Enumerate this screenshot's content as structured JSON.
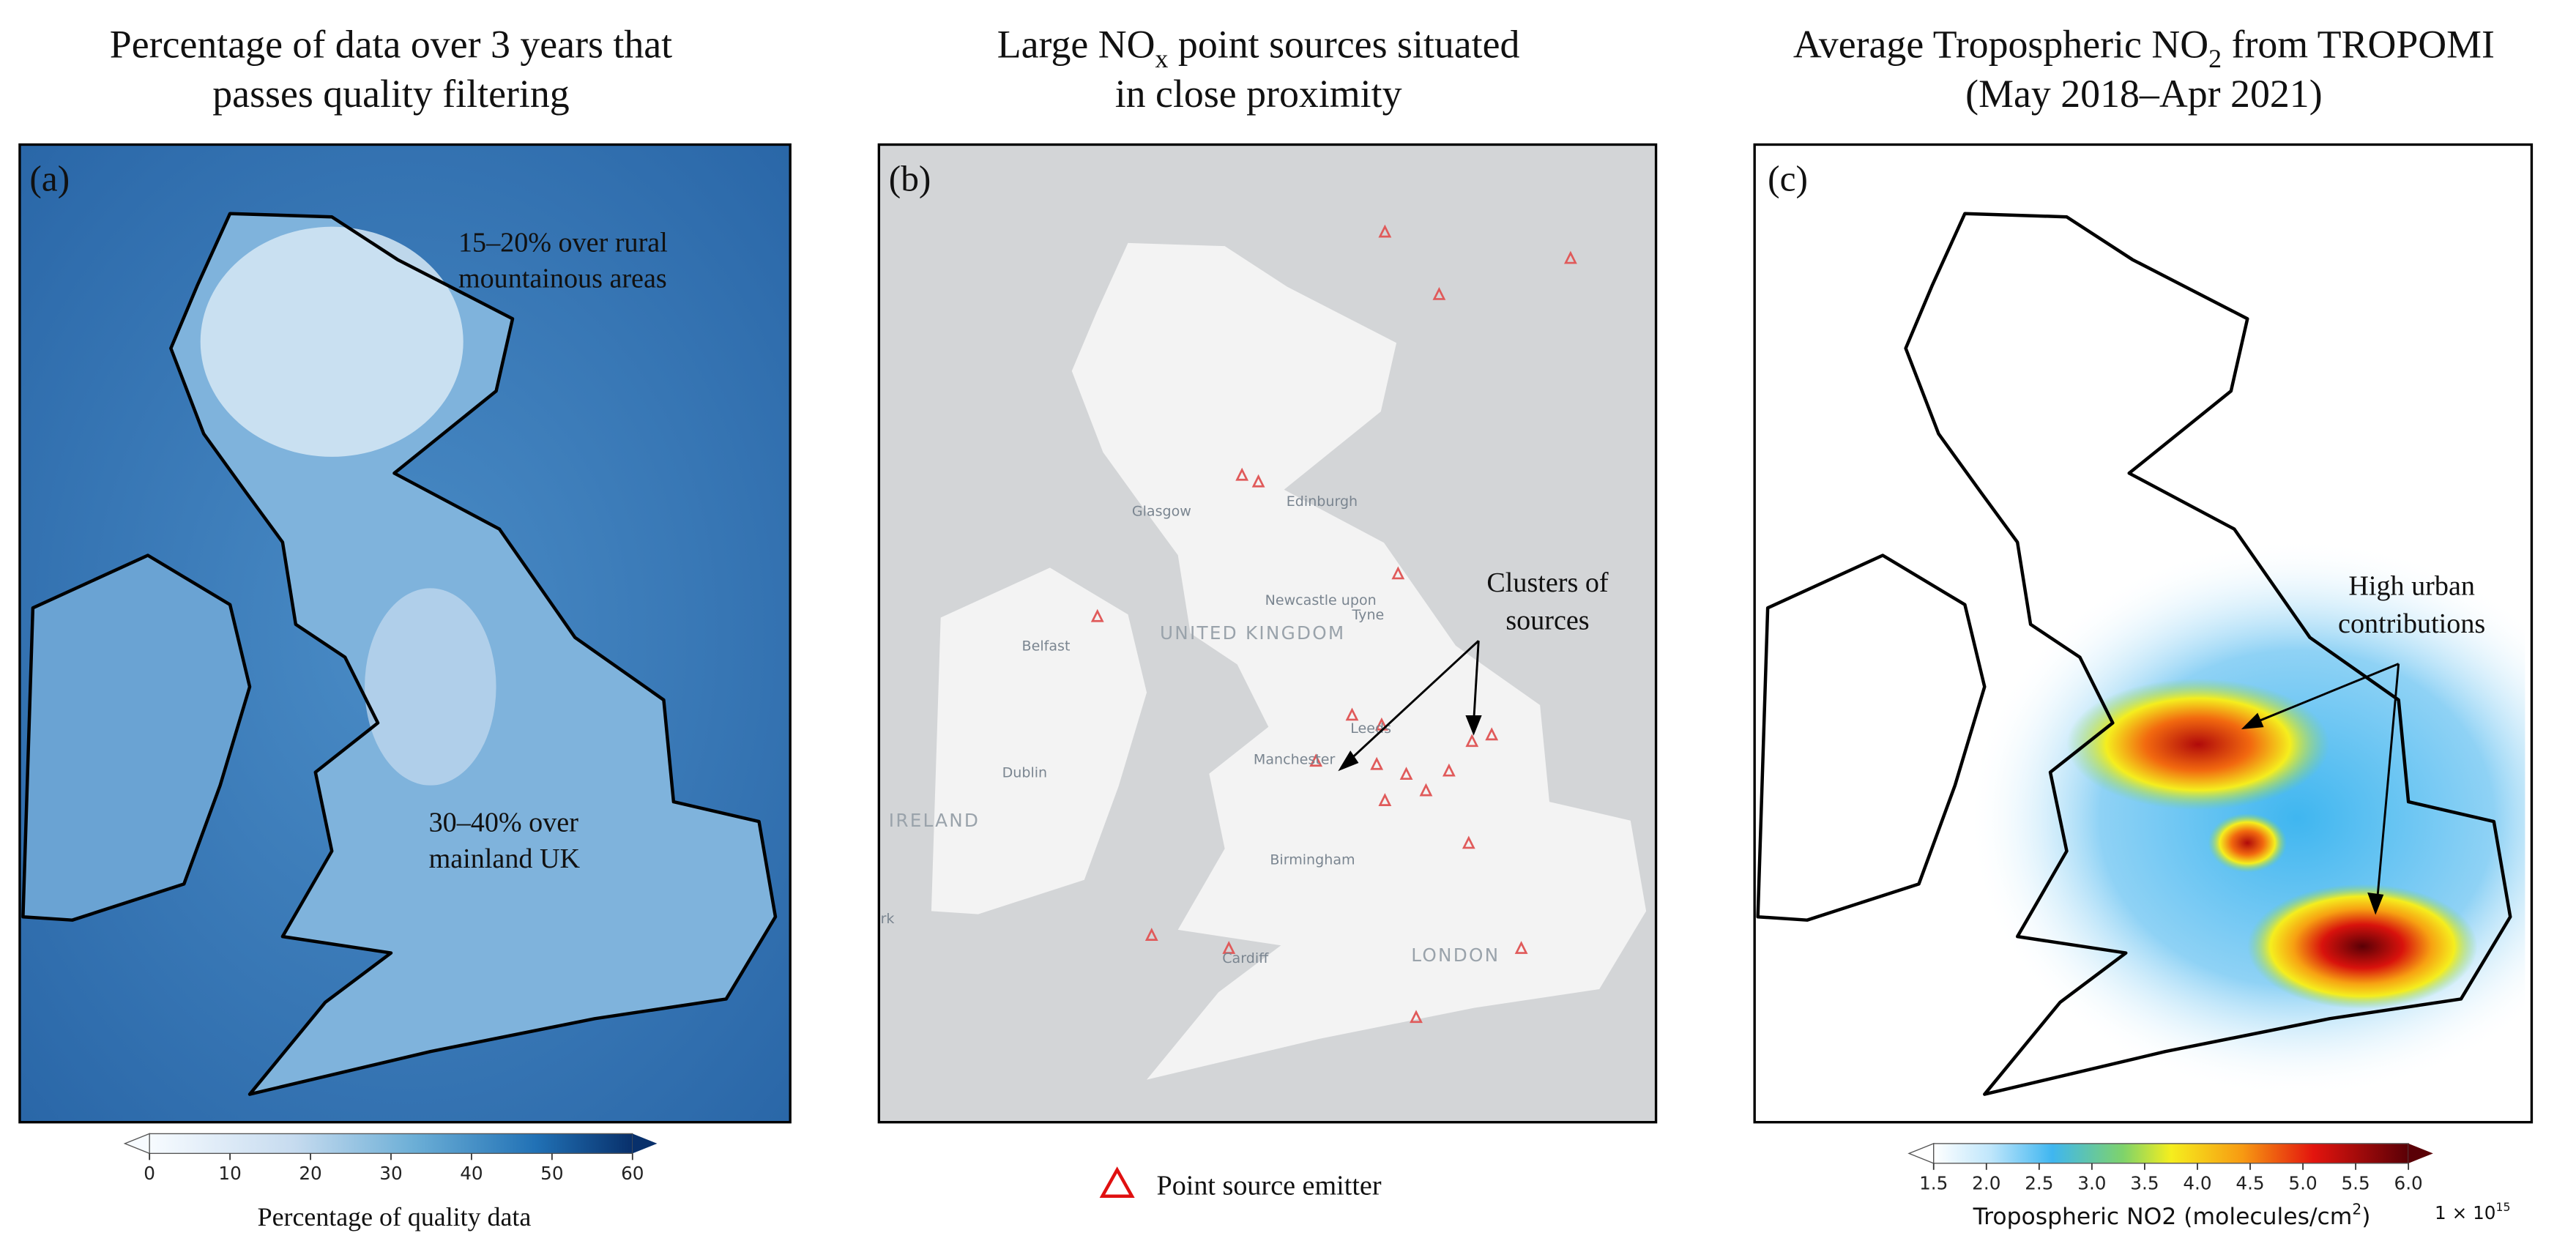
{
  "panels": [
    {
      "title": {
        "line1": "Percentage of data over 3 years that",
        "line2": "passes quality filtering"
      },
      "label": "(a)",
      "annotations": [
        {
          "line1": "15–20% over rural",
          "line2": "mountainous areas"
        },
        {
          "line1": "30–40% over",
          "line2": "mainland UK"
        }
      ],
      "colorbar": {
        "ticks": [
          "0",
          "10",
          "20",
          "30",
          "40",
          "50",
          "60"
        ],
        "label": "Percentage of quality data"
      }
    },
    {
      "title": {
        "line1": [
          "Large NO",
          "x",
          " point sources situated"
        ],
        "line2": "in close proximity"
      },
      "label": "(b)",
      "annotations": [
        {
          "line1": "Clusters of",
          "line2": "sources"
        }
      ],
      "map_labels": {
        "places": [
          "Glasgow",
          "Edinburgh",
          "Newcastle upon",
          "Tyne",
          "Belfast",
          "Leeds",
          "Manchester",
          "Dublin",
          "Birmingham",
          "Cardiff",
          "LONDON",
          "rk"
        ],
        "countries": [
          "UNITED KINGDOM",
          "IRELAND"
        ]
      },
      "legend": "Point source emitter"
    },
    {
      "title": {
        "line1": [
          "Average Tropospheric NO",
          "2",
          " from TROPOMI"
        ],
        "line2": "(May 2018–Apr 2021)"
      },
      "label": "(c)",
      "annotations": [
        {
          "line1": "High urban",
          "line2": "contributions"
        }
      ],
      "colorbar": {
        "ticks": [
          "1.5",
          "2.0",
          "2.5",
          "3.0",
          "3.5",
          "4.0",
          "4.5",
          "5.0",
          "5.5",
          "6.0"
        ],
        "label": [
          "Tropospheric NO2 (molecules/cm",
          "2",
          ")"
        ],
        "multiplier": [
          "1 × 10",
          "15"
        ]
      }
    }
  ]
}
